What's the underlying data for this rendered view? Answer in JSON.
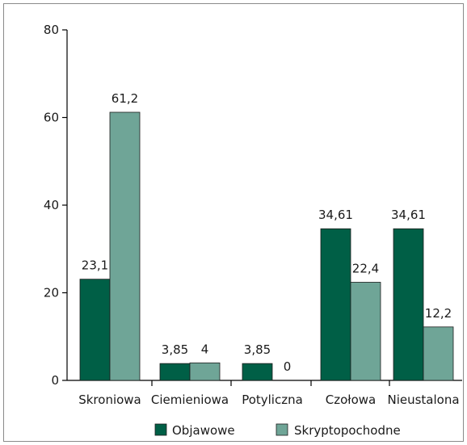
{
  "chart_data": {
    "type": "bar",
    "title": "",
    "xlabel": "",
    "ylabel": "",
    "ylim": [
      0,
      80
    ],
    "yticks": [
      0,
      20,
      40,
      60,
      80
    ],
    "categories": [
      "Skroniowa",
      "Ciemieniowa",
      "Potyliczna",
      "Czołowa",
      "Nieustalona"
    ],
    "series": [
      {
        "name": "Objawowe",
        "color": "#005f46",
        "values": [
          23.1,
          3.85,
          3.85,
          34.61,
          34.61
        ],
        "labels": [
          "23,1",
          "3,85",
          "3,85",
          "34,61",
          "34,61"
        ]
      },
      {
        "name": "Skryptopochodne",
        "color": "#6fa597",
        "values": [
          61.2,
          4,
          0,
          22.4,
          12.2
        ],
        "labels": [
          "61,2",
          "4",
          "0",
          "22,4",
          "12,2"
        ]
      }
    ],
    "grid": false,
    "legend_position": "bottom"
  }
}
